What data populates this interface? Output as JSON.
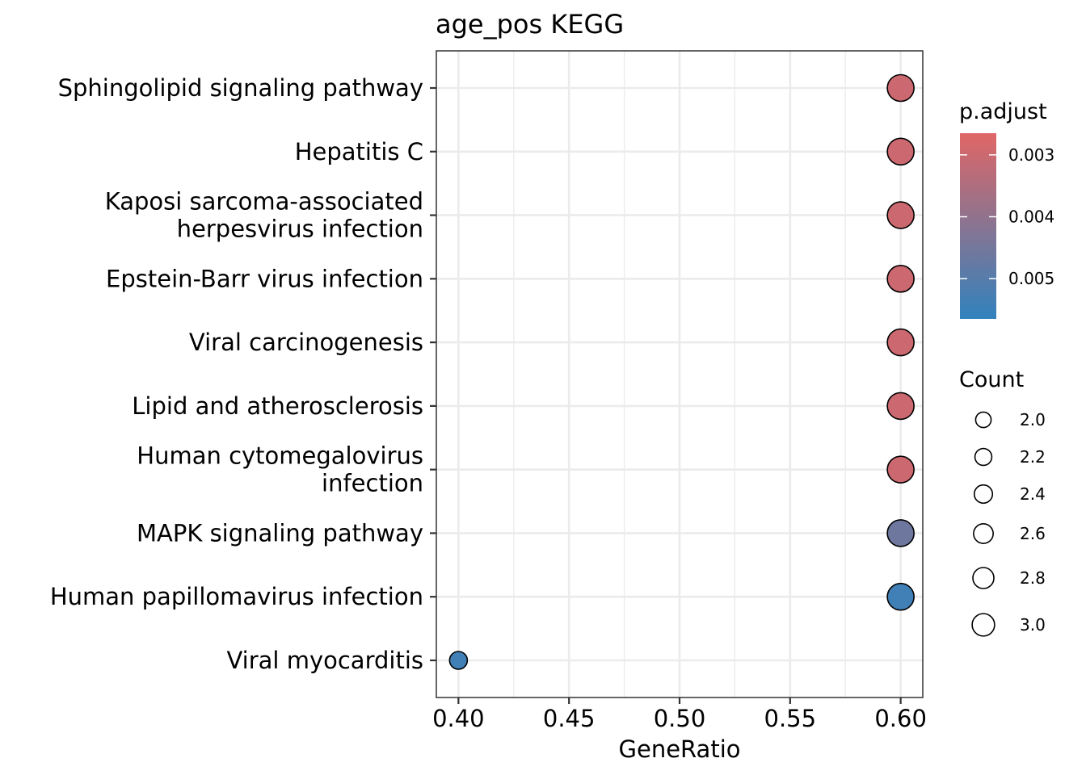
{
  "chart_data": {
    "type": "scatter",
    "title": "age_pos KEGG",
    "xlabel": "GeneRatio",
    "ylabel": "",
    "xlim": [
      0.39,
      0.61
    ],
    "x_ticks": [
      "0.40",
      "0.45",
      "0.50",
      "0.55",
      "0.60"
    ],
    "x_tick_values": [
      0.4,
      0.45,
      0.5,
      0.55,
      0.6
    ],
    "grid": true,
    "categories": [
      [
        "Sphingolipid signaling pathway"
      ],
      [
        "Hepatitis C"
      ],
      [
        "Kaposi sarcoma-associated",
        "herpesvirus infection"
      ],
      [
        "Epstein-Barr virus infection"
      ],
      [
        "Viral carcinogenesis"
      ],
      [
        "Lipid and atherosclerosis"
      ],
      [
        "Human cytomegalovirus",
        "infection"
      ],
      [
        "MAPK signaling pathway"
      ],
      [
        "Human papillomavirus infection"
      ],
      [
        "Viral myocarditis"
      ]
    ],
    "points": [
      {
        "gene_ratio": 0.6,
        "count": 3,
        "p_adjust": 0.003
      },
      {
        "gene_ratio": 0.6,
        "count": 3,
        "p_adjust": 0.003
      },
      {
        "gene_ratio": 0.6,
        "count": 3,
        "p_adjust": 0.003
      },
      {
        "gene_ratio": 0.6,
        "count": 3,
        "p_adjust": 0.003
      },
      {
        "gene_ratio": 0.6,
        "count": 3,
        "p_adjust": 0.003
      },
      {
        "gene_ratio": 0.6,
        "count": 3,
        "p_adjust": 0.003
      },
      {
        "gene_ratio": 0.6,
        "count": 3,
        "p_adjust": 0.003
      },
      {
        "gene_ratio": 0.6,
        "count": 3,
        "p_adjust": 0.0046
      },
      {
        "gene_ratio": 0.6,
        "count": 3,
        "p_adjust": 0.0054
      },
      {
        "gene_ratio": 0.4,
        "count": 2,
        "p_adjust": 0.0054
      }
    ],
    "color_legend": {
      "title": "p.adjust",
      "ticks": [
        "0.003",
        "0.004",
        "0.005"
      ],
      "tick_values": [
        0.003,
        0.004,
        0.005
      ],
      "range": [
        0.00265,
        0.00565
      ],
      "low_color": "#e06666",
      "high_color": "#3182bd"
    },
    "size_legend": {
      "title": "Count",
      "ticks": [
        "2.0",
        "2.2",
        "2.4",
        "2.6",
        "2.8",
        "3.0"
      ],
      "tick_values": [
        2.0,
        2.2,
        2.4,
        2.6,
        2.8,
        3.0
      ]
    },
    "legend_position": "right"
  }
}
